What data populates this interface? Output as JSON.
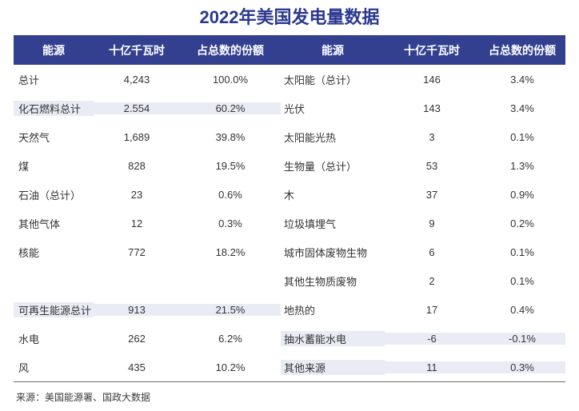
{
  "title": "2022年美国发电量数据",
  "source": "来源：美国能源署、国政大数据",
  "colors": {
    "header_bg": "#334090",
    "title_color": "#2b3890",
    "row_highlight": "#e9ecf5",
    "text_color": "#333333",
    "header_text": "#ffffff",
    "border_color": "#6b6b6b",
    "source_color": "#3a3a3a"
  },
  "table": {
    "headers": [
      "能源",
      "十亿千瓦时",
      "占总数的份额",
      "能源",
      "十亿千瓦时",
      "占总数的份额"
    ],
    "rows": [
      {
        "cells": [
          "总计",
          "4,243",
          "100.0%",
          "太阳能（总计）",
          "146",
          "3.4%"
        ],
        "hl_left": false,
        "hl_right": false
      },
      {
        "cells": [
          "化石燃料总计",
          "2.554",
          "60.2%",
          "光伏",
          "143",
          "3.4%"
        ],
        "hl_left": true,
        "hl_right": false
      },
      {
        "cells": [
          "天然气",
          "1,689",
          "39.8%",
          "太阳能光热",
          "3",
          "0.1%"
        ],
        "hl_left": false,
        "hl_right": false
      },
      {
        "cells": [
          "煤",
          "828",
          "19.5%",
          "生物量（总计）",
          "53",
          "1.3%"
        ],
        "hl_left": false,
        "hl_right": false
      },
      {
        "cells": [
          "石油（总计）",
          "23",
          "0.6%",
          "木",
          "37",
          "0.9%"
        ],
        "hl_left": false,
        "hl_right": false
      },
      {
        "cells": [
          "其他气体",
          "12",
          "0.3%",
          "垃圾填埋气",
          "9",
          "0.2%"
        ],
        "hl_left": false,
        "hl_right": false
      },
      {
        "cells": [
          "核能",
          "772",
          "18.2%",
          "城市固体废物生物",
          "6",
          "0.1%"
        ],
        "hl_left": false,
        "hl_right": false
      },
      {
        "cells": [
          "",
          "",
          "",
          "其他生物质废物",
          "2",
          "0.1%"
        ],
        "hl_left": false,
        "hl_right": false
      },
      {
        "cells": [
          "可再生能源总计",
          "913",
          "21.5%",
          "地热的",
          "17",
          "0.4%"
        ],
        "hl_left": true,
        "hl_right": false
      },
      {
        "cells": [
          "水电",
          "262",
          "6.2%",
          "抽水蓄能水电",
          "-6",
          "-0.1%"
        ],
        "hl_left": false,
        "hl_right": true
      },
      {
        "cells": [
          "风",
          "435",
          "10.2%",
          "其他来源",
          "11",
          "0.3%"
        ],
        "hl_left": false,
        "hl_right": true
      }
    ]
  },
  "chart_data": {
    "type": "table",
    "title": "2022年美国发电量数据",
    "columns": [
      "能源",
      "十亿千瓦时",
      "占总数的份额"
    ],
    "rows": [
      {
        "energy": "总计",
        "billion_kwh": "4,243",
        "share": "100.0%"
      },
      {
        "energy": "化石燃料总计",
        "billion_kwh": "2.554",
        "share": "60.2%"
      },
      {
        "energy": "天然气",
        "billion_kwh": "1,689",
        "share": "39.8%"
      },
      {
        "energy": "煤",
        "billion_kwh": "828",
        "share": "19.5%"
      },
      {
        "energy": "石油（总计）",
        "billion_kwh": "23",
        "share": "0.6%"
      },
      {
        "energy": "其他气体",
        "billion_kwh": "12",
        "share": "0.3%"
      },
      {
        "energy": "核能",
        "billion_kwh": "772",
        "share": "18.2%"
      },
      {
        "energy": "可再生能源总计",
        "billion_kwh": "913",
        "share": "21.5%"
      },
      {
        "energy": "水电",
        "billion_kwh": "262",
        "share": "6.2%"
      },
      {
        "energy": "风",
        "billion_kwh": "435",
        "share": "10.2%"
      },
      {
        "energy": "太阳能（总计）",
        "billion_kwh": "146",
        "share": "3.4%"
      },
      {
        "energy": "光伏",
        "billion_kwh": "143",
        "share": "3.4%"
      },
      {
        "energy": "太阳能光热",
        "billion_kwh": "3",
        "share": "0.1%"
      },
      {
        "energy": "生物量（总计）",
        "billion_kwh": "53",
        "share": "1.3%"
      },
      {
        "energy": "木",
        "billion_kwh": "37",
        "share": "0.9%"
      },
      {
        "energy": "垃圾填埋气",
        "billion_kwh": "9",
        "share": "0.2%"
      },
      {
        "energy": "城市固体废物生物",
        "billion_kwh": "6",
        "share": "0.1%"
      },
      {
        "energy": "其他生物质废物",
        "billion_kwh": "2",
        "share": "0.1%"
      },
      {
        "energy": "地热的",
        "billion_kwh": "17",
        "share": "0.4%"
      },
      {
        "energy": "抽水蓄能水电",
        "billion_kwh": "-6",
        "share": "-0.1%"
      },
      {
        "energy": "其他来源",
        "billion_kwh": "11",
        "share": "0.3%"
      }
    ],
    "source": "来源：美国能源署、国政大数据",
    "layout": {
      "two_column_split": true,
      "highlighted_rows": [
        "化石燃料总计",
        "可再生能源总计",
        "抽水蓄能水电",
        "其他来源"
      ]
    }
  }
}
